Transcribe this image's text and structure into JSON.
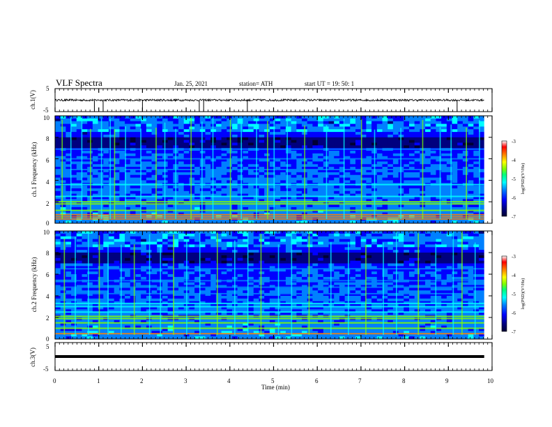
{
  "header": {
    "title": "VLF Spectra",
    "date": "Jan. 25, 2021",
    "station": "station= ATH",
    "start": "start  UT =   19: 50: 1"
  },
  "colors": {
    "trace": "#000000",
    "colormap": [
      "#000033",
      "#00007f",
      "#0000ff",
      "#0080ff",
      "#00ffff",
      "#00ff80",
      "#80ff00",
      "#ffff00",
      "#ff8000",
      "#ff0000",
      "#ffffff"
    ]
  },
  "chart_data": [
    {
      "type": "line",
      "name": "ch1-waveform",
      "ylabel": "ch.1(V)",
      "ylim": [
        -5,
        5
      ],
      "yticks": [
        "5",
        "-5"
      ],
      "xlim": [
        0,
        10
      ],
      "description_values": {
        "typical_level": 0,
        "noise_amplitude": 1,
        "spike_min": -5,
        "spike_times_min": [
          0.9,
          1.1,
          2.0,
          3.3,
          3.4,
          4.4,
          9.2
        ]
      }
    },
    {
      "type": "heatmap",
      "name": "ch1-spectrogram",
      "ylabel": "ch.1 Frequency (kHz)",
      "ylim": [
        0,
        10
      ],
      "yticks": [
        "0",
        "2",
        "4",
        "6",
        "8",
        "10"
      ],
      "xlim": [
        0,
        9.82
      ],
      "colorbar": {
        "label": "log(PSD)(V²/Hz)",
        "range": [
          -7,
          -3
        ],
        "ticks": [
          "-3",
          "-4",
          "-5",
          "-6",
          "-7"
        ]
      },
      "bands_khz": [
        0.4,
        0.6,
        0.8,
        1.2,
        1.8,
        2.0,
        2.5,
        3.6,
        5.0,
        6.0,
        6.9
      ],
      "sferic_times_min": [
        0.15,
        0.35,
        0.6,
        0.8,
        1.05,
        1.25,
        1.35,
        1.6,
        1.95,
        2.3,
        2.5,
        2.75,
        3.1,
        3.35,
        3.6,
        4.0,
        4.25,
        4.6,
        4.85,
        5.0,
        5.3,
        5.7,
        6.2,
        6.6,
        7.0,
        7.3,
        7.9,
        8.4,
        8.8,
        9.05,
        9.4,
        9.7
      ]
    },
    {
      "type": "heatmap",
      "name": "ch2-spectrogram",
      "ylabel": "ch.2 Frequency (kHz)",
      "ylim": [
        0,
        10
      ],
      "yticks": [
        "0",
        "2",
        "4",
        "6",
        "8",
        "10"
      ],
      "xlim": [
        0,
        9.82
      ],
      "colorbar": {
        "label": "log(PSD)(V²/Hz)",
        "range": [
          -7,
          -3
        ],
        "ticks": [
          "-3",
          "-4",
          "-5",
          "-6",
          "-7"
        ]
      },
      "bands_khz": [
        0.5,
        1.0,
        1.5,
        1.9,
        2.1,
        2.5,
        3.0,
        3.3,
        4.2,
        4.8,
        5.4,
        6.5
      ],
      "sferic_times_min": [
        0.2,
        0.45,
        0.75,
        1.0,
        1.2,
        1.5,
        1.8,
        2.15,
        2.4,
        2.7,
        3.0,
        3.3,
        3.7,
        4.1,
        4.4,
        4.7,
        5.1,
        5.4,
        5.8,
        6.3,
        6.7,
        7.1,
        7.5,
        7.8,
        8.3,
        8.7,
        9.1,
        9.3,
        9.6
      ]
    },
    {
      "type": "line",
      "name": "ch3-waveform",
      "ylabel": "ch.3(V)",
      "ylim": [
        -5,
        5
      ],
      "yticks": [
        "5",
        "-5"
      ],
      "xlim": [
        0,
        10
      ],
      "xlabel": "Time  (min)",
      "xticks": [
        "0",
        "1",
        "2",
        "3",
        "4",
        "5",
        "6",
        "7",
        "8",
        "9",
        "10"
      ],
      "description_values": {
        "level": 0
      }
    }
  ]
}
